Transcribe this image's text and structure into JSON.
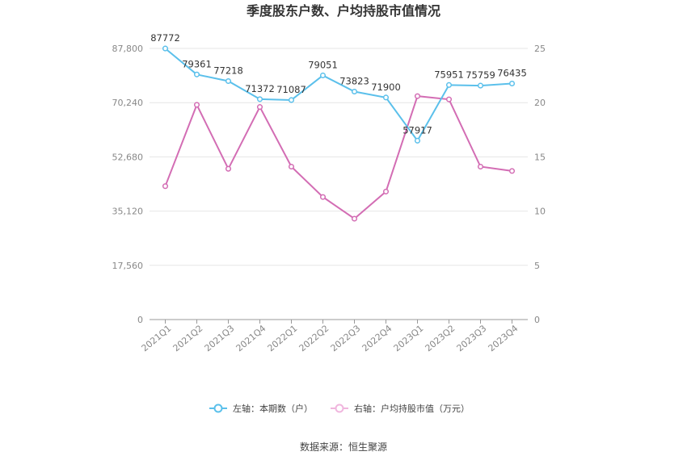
{
  "chart_data": {
    "type": "line",
    "title": "季度股东户数、户均持股市值情况",
    "categories": [
      "2021Q1",
      "2021Q2",
      "2021Q3",
      "2021Q4",
      "2022Q1",
      "2022Q2",
      "2022Q3",
      "2022Q4",
      "2023Q1",
      "2023Q2",
      "2023Q3",
      "2023Q4"
    ],
    "y_left": {
      "ticks": [
        "0",
        "17,560",
        "35,120",
        "52,680",
        "70,240",
        "87,800"
      ],
      "ylim": [
        0,
        87800
      ]
    },
    "y_right": {
      "ticks": [
        "0",
        "5",
        "10",
        "15",
        "20",
        "25"
      ],
      "ylim": [
        0,
        25
      ]
    },
    "series": [
      {
        "name": "左轴：本期数（户）",
        "axis": "left",
        "color": "#5bc0eb",
        "values": [
          87772,
          79361,
          77218,
          71372,
          71087,
          79051,
          73823,
          71900,
          57917,
          75951,
          75759,
          76435
        ],
        "labels": [
          "87772",
          "79361",
          "77218",
          "71372",
          "71087",
          "79051",
          "73823",
          "71900",
          "57917",
          "75951",
          "75759",
          "76435"
        ]
      },
      {
        "name": "右轴：户均持股市值（万元）",
        "axis": "right",
        "color": "#d36db4",
        "values": [
          12.3,
          19.8,
          13.9,
          19.6,
          14.1,
          11.3,
          9.3,
          11.8,
          20.6,
          20.3,
          14.1,
          13.7
        ]
      }
    ],
    "grid": true,
    "legend_position": "bottom"
  },
  "source_text": "数据来源：恒生聚源"
}
